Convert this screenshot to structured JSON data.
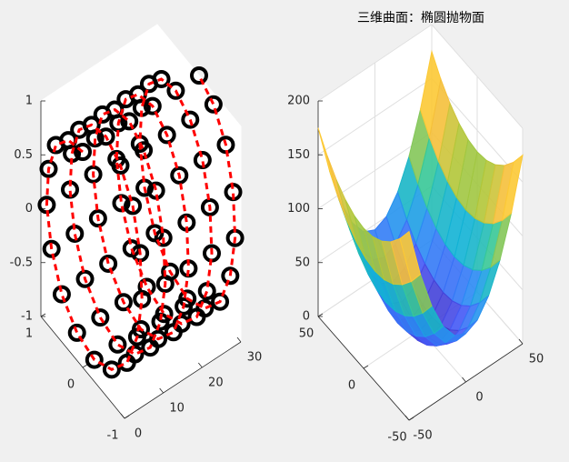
{
  "chart_data": [
    {
      "type": "line3d",
      "color": "#ff0000",
      "marker_color": "#000000",
      "x": [
        0,
        0.375,
        0.75,
        1.125,
        1.5,
        1.875,
        2.25,
        2.625,
        3,
        3.375,
        3.75,
        4.125,
        4.5,
        4.875,
        5.25,
        5.625,
        6,
        6.375,
        6.75,
        7.125,
        7.5,
        7.875,
        8.25,
        8.625,
        9,
        9.375,
        9.75,
        10.125,
        10.5,
        10.875,
        11.25,
        11.625,
        12,
        12.375,
        12.75,
        13.125,
        13.5,
        13.875,
        14.25,
        14.625,
        15,
        15.375,
        15.75,
        16.125,
        16.5,
        16.875,
        17.25,
        17.625,
        18,
        18.375,
        18.75,
        19.125,
        19.5,
        19.875,
        20.25,
        20.625,
        21,
        21.375,
        21.75,
        22.125,
        22.5,
        22.875,
        23.25,
        23.625,
        24,
        24.375,
        24.75,
        25.125,
        25.5,
        25.875,
        26.25,
        26.625,
        27,
        27.375,
        27.75,
        28.125,
        28.5,
        28.875,
        29.25,
        29.625,
        30
      ],
      "y": [
        0,
        0.38,
        0.71,
        0.92,
        1,
        0.92,
        0.71,
        0.38,
        0,
        -0.38,
        -0.71,
        -0.92,
        -1,
        -0.92,
        -0.71,
        -0.38,
        0,
        0.38,
        0.71,
        0.92,
        1,
        0.92,
        0.71,
        0.38,
        0,
        -0.38,
        -0.71,
        -0.92,
        -1,
        -0.92,
        -0.71,
        -0.38,
        0,
        0.38,
        0.71,
        0.92,
        1,
        0.92,
        0.71,
        0.38,
        0,
        -0.38,
        -0.71,
        -0.92,
        -1,
        -0.92,
        -0.71,
        -0.38,
        0,
        0.38,
        0.71,
        0.92,
        1,
        0.92,
        0.71,
        0.38,
        0,
        -0.38,
        -0.71,
        -0.92,
        -1,
        -0.92,
        -0.71,
        -0.38,
        0,
        0.38,
        0.71,
        0.92,
        1,
        0.92,
        0.71,
        0.38,
        0,
        -0.38,
        -0.71,
        -0.92,
        -1,
        -0.92,
        -0.71,
        -0.38,
        0
      ],
      "z": [
        1,
        0.92,
        0.71,
        0.38,
        0,
        -0.38,
        -0.71,
        -0.92,
        -1,
        -0.92,
        -0.71,
        -0.38,
        0,
        0.38,
        0.71,
        0.92,
        1,
        0.92,
        0.71,
        0.38,
        0,
        -0.38,
        -0.71,
        -0.92,
        -1,
        -0.92,
        -0.71,
        -0.38,
        0,
        0.38,
        0.71,
        0.92,
        1,
        0.92,
        0.71,
        0.38,
        0,
        -0.38,
        -0.71,
        -0.92,
        -1,
        -0.92,
        -0.71,
        -0.38,
        0,
        0.38,
        0.71,
        0.92,
        1,
        0.92,
        0.71,
        0.38,
        0,
        -0.38,
        -0.71,
        -0.92,
        -1,
        -0.92,
        -0.71,
        -0.38,
        0,
        0.38,
        0.71,
        0.92,
        1,
        0.92,
        0.71,
        0.38,
        0,
        -0.38,
        -0.71,
        -0.92,
        -1,
        -0.92,
        -0.71,
        -0.38,
        0,
        0.38,
        0.71,
        0.92,
        1
      ],
      "xlim": [
        0,
        30
      ],
      "ylim": [
        -1,
        1
      ],
      "zlim": [
        -1,
        1
      ],
      "xticks": [
        0,
        10,
        20,
        30
      ],
      "yticks": [
        -1,
        0,
        1
      ],
      "zticks": [
        -1,
        -0.5,
        0,
        0.5,
        1
      ],
      "grid": false
    },
    {
      "type": "mesh",
      "title": "三维曲面：椭圆抛物面",
      "colormap": "parula",
      "x": [
        -50,
        -40,
        -30,
        -20,
        -10,
        0,
        10,
        20,
        30,
        40,
        50
      ],
      "y": [
        -50,
        -40,
        -30,
        -20,
        -10,
        0,
        10,
        20,
        30,
        40,
        50
      ],
      "z": [
        [
          175,
          128.2,
          91.8,
          65.8,
          50.2,
          45,
          50.2,
          65.8,
          91.8,
          128.2,
          175
        ],
        [
          158.8,
          112,
          75.6,
          49.6,
          34,
          28.8,
          34,
          49.6,
          75.6,
          112,
          158.8
        ],
        [
          146.2,
          99.4,
          63,
          37,
          21.4,
          16.2,
          21.4,
          37,
          63,
          99.4,
          146.2
        ],
        [
          137.2,
          90.4,
          54,
          28,
          12.4,
          7.2,
          12.4,
          28,
          54,
          90.4,
          137.2
        ],
        [
          131.8,
          85,
          48.6,
          22.6,
          7,
          1.8,
          7,
          22.6,
          48.6,
          85,
          131.8
        ],
        [
          130,
          83.2,
          46.8,
          20.8,
          5.2,
          0,
          5.2,
          20.8,
          46.8,
          83.2,
          130
        ],
        [
          131.8,
          85,
          48.6,
          22.6,
          7,
          1.8,
          7,
          22.6,
          48.6,
          85,
          131.8
        ],
        [
          137.2,
          90.4,
          54,
          28,
          12.4,
          7.2,
          12.4,
          28,
          54,
          90.4,
          137.2
        ],
        [
          146.2,
          99.4,
          63,
          37,
          21.4,
          16.2,
          21.4,
          37,
          63,
          99.4,
          146.2
        ],
        [
          158.8,
          112,
          75.6,
          49.6,
          34,
          28.8,
          34,
          49.6,
          75.6,
          112,
          158.8
        ],
        [
          175,
          128.2,
          91.8,
          65.8,
          50.2,
          45,
          50.2,
          65.8,
          91.8,
          128.2,
          175
        ]
      ],
      "xlim": [
        -50,
        50
      ],
      "ylim": [
        -50,
        50
      ],
      "zlim": [
        0,
        200
      ],
      "xticks": [
        -50,
        0,
        50
      ],
      "yticks": [
        -50,
        0,
        50
      ],
      "zticks": [
        0,
        50,
        100,
        150,
        200
      ],
      "grid": true
    }
  ]
}
